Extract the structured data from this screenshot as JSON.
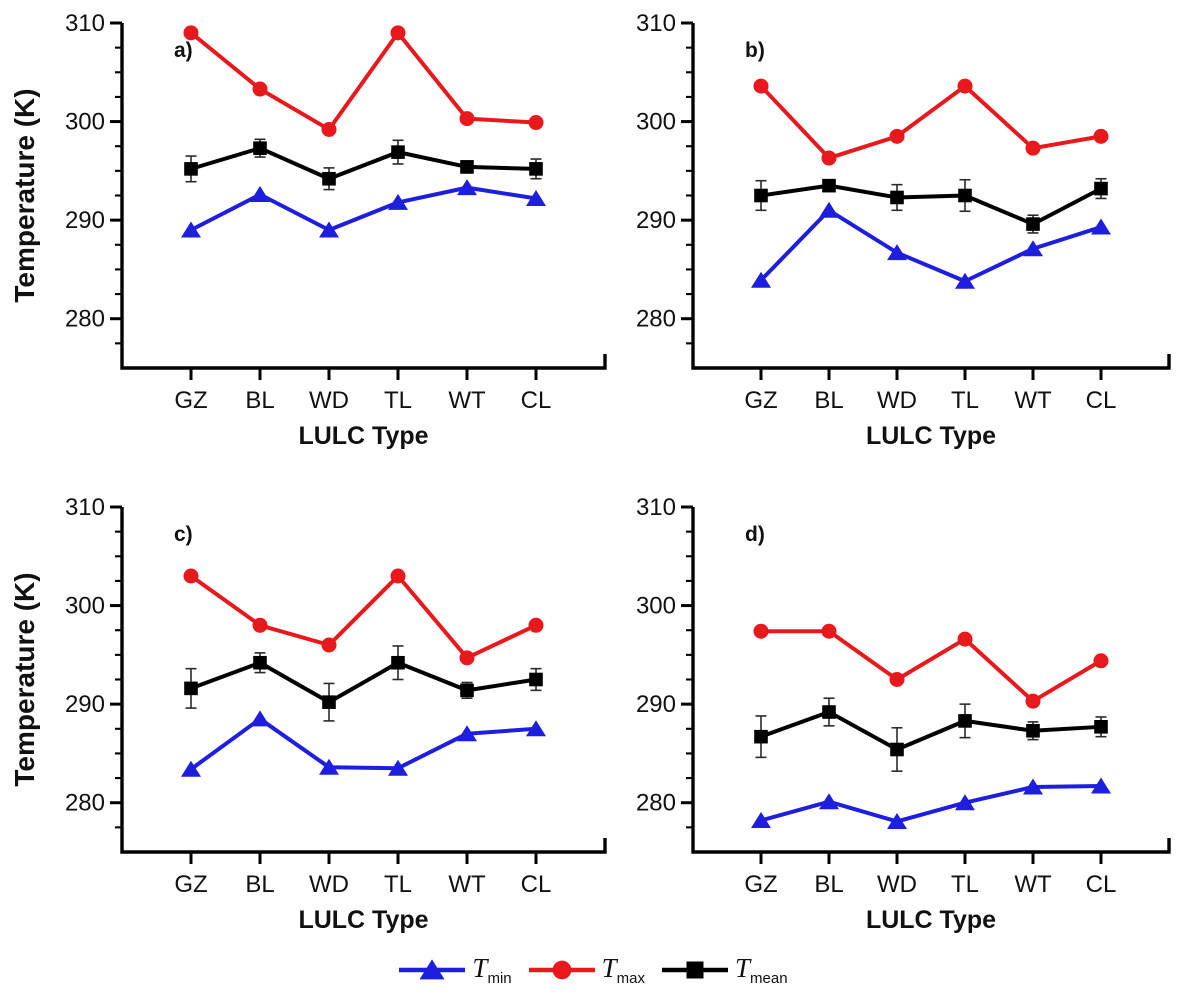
{
  "figure": {
    "background": "#ffffff"
  },
  "colors": {
    "tmin": "#1e1ede",
    "tmax": "#e8191c",
    "tmean": "#000000",
    "axis": "#000000",
    "error_bar": "#2a2a2a",
    "text": "#111111"
  },
  "legend": {
    "items": [
      {
        "key": "tmin",
        "marker": "triangle",
        "symbol": "T",
        "subscript": "min"
      },
      {
        "key": "tmax",
        "marker": "circle",
        "symbol": "T",
        "subscript": "max"
      },
      {
        "key": "tmean",
        "marker": "square",
        "symbol": "T",
        "subscript": "mean"
      }
    ]
  },
  "chart_data": [
    {
      "panel": "a)",
      "type": "line",
      "categories": [
        "GZ",
        "BL",
        "WD",
        "TL",
        "WT",
        "CL"
      ],
      "xlabel": "LULC Type",
      "ylabel": "Temperature (K)",
      "show_ylabel": true,
      "ylim": [
        275,
        310
      ],
      "yticks": [
        280,
        290,
        300,
        310
      ],
      "yminor_step": 2.5,
      "grid": false,
      "series": [
        {
          "key": "tmin",
          "name": "T_min",
          "marker": "triangle",
          "values": [
            289.0,
            292.6,
            289.0,
            291.8,
            293.3,
            292.2
          ]
        },
        {
          "key": "tmax",
          "name": "T_max",
          "marker": "circle",
          "values": [
            309.0,
            303.3,
            299.2,
            309.0,
            300.3,
            299.9
          ]
        },
        {
          "key": "tmean",
          "name": "T_mean",
          "marker": "square",
          "values": [
            295.2,
            297.3,
            294.2,
            296.9,
            295.4,
            295.2
          ],
          "errors": [
            1.3,
            0.9,
            1.1,
            1.2,
            0.6,
            1.0
          ]
        }
      ]
    },
    {
      "panel": "b)",
      "type": "line",
      "categories": [
        "GZ",
        "BL",
        "WD",
        "TL",
        "WT",
        "CL"
      ],
      "xlabel": "LULC Type",
      "ylabel": "Temperature (K)",
      "show_ylabel": false,
      "ylim": [
        275,
        310
      ],
      "yticks": [
        280,
        290,
        300,
        310
      ],
      "yminor_step": 2.5,
      "grid": false,
      "series": [
        {
          "key": "tmin",
          "name": "T_min",
          "marker": "triangle",
          "values": [
            283.9,
            291.0,
            286.7,
            283.8,
            287.1,
            289.3
          ]
        },
        {
          "key": "tmax",
          "name": "T_max",
          "marker": "circle",
          "values": [
            303.6,
            296.3,
            298.5,
            303.6,
            297.3,
            298.5
          ]
        },
        {
          "key": "tmean",
          "name": "T_mean",
          "marker": "square",
          "values": [
            292.5,
            293.5,
            292.3,
            292.5,
            289.6,
            293.2
          ],
          "errors": [
            1.5,
            0.5,
            1.3,
            1.6,
            0.9,
            1.0
          ]
        }
      ]
    },
    {
      "panel": "c)",
      "type": "line",
      "categories": [
        "GZ",
        "BL",
        "WD",
        "TL",
        "WT",
        "CL"
      ],
      "xlabel": "LULC Type",
      "ylabel": "Temperature (K)",
      "show_ylabel": true,
      "ylim": [
        275,
        310
      ],
      "yticks": [
        280,
        290,
        300,
        310
      ],
      "yminor_step": 2.5,
      "grid": false,
      "series": [
        {
          "key": "tmin",
          "name": "T_min",
          "marker": "triangle",
          "values": [
            283.4,
            288.5,
            283.6,
            283.5,
            287.0,
            287.5
          ]
        },
        {
          "key": "tmax",
          "name": "T_max",
          "marker": "circle",
          "values": [
            303.0,
            298.0,
            296.0,
            303.0,
            294.7,
            298.0
          ]
        },
        {
          "key": "tmean",
          "name": "T_mean",
          "marker": "square",
          "values": [
            291.6,
            294.2,
            290.2,
            294.2,
            291.4,
            292.5
          ],
          "errors": [
            2.0,
            1.0,
            1.9,
            1.7,
            0.8,
            1.1
          ]
        }
      ]
    },
    {
      "panel": "d)",
      "type": "line",
      "categories": [
        "GZ",
        "BL",
        "WD",
        "TL",
        "WT",
        "CL"
      ],
      "xlabel": "LULC Type",
      "ylabel": "Temperature (K)",
      "show_ylabel": false,
      "ylim": [
        275,
        310
      ],
      "yticks": [
        280,
        290,
        300,
        310
      ],
      "yminor_step": 2.5,
      "grid": false,
      "series": [
        {
          "key": "tmin",
          "name": "T_min",
          "marker": "triangle",
          "values": [
            278.2,
            280.1,
            278.1,
            280.0,
            281.6,
            281.7
          ]
        },
        {
          "key": "tmax",
          "name": "T_max",
          "marker": "circle",
          "values": [
            297.4,
            297.4,
            292.5,
            296.6,
            290.3,
            294.4
          ]
        },
        {
          "key": "tmean",
          "name": "T_mean",
          "marker": "square",
          "values": [
            286.7,
            289.2,
            285.4,
            288.3,
            287.3,
            287.7
          ],
          "errors": [
            2.1,
            1.4,
            2.2,
            1.7,
            0.9,
            1.0
          ]
        }
      ]
    }
  ]
}
